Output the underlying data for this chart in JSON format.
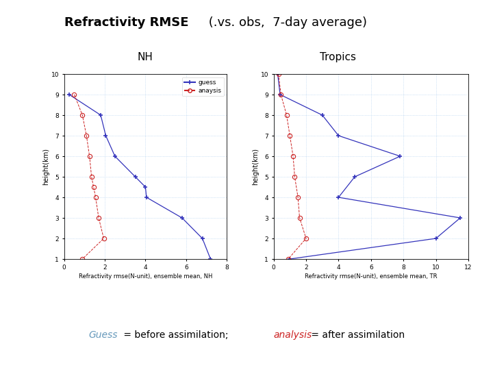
{
  "title_bold": "Refractivity RMSE",
  "title_normal": " (.vs. obs,  7-day average)",
  "subtitle_left": "NH",
  "subtitle_right": "Tropics",
  "nh_heights": [
    9.0,
    8.0,
    7.0,
    6.0,
    5.0,
    4.5,
    4.0,
    3.0,
    2.0,
    1.0
  ],
  "nh_guess": [
    0.25,
    1.8,
    2.05,
    2.5,
    3.5,
    4.0,
    4.05,
    5.8,
    6.8,
    7.2
  ],
  "nh_analysis": [
    0.5,
    0.9,
    1.1,
    1.25,
    1.35,
    1.45,
    1.55,
    1.7,
    1.95,
    0.9
  ],
  "tr_heights": [
    10.0,
    9.0,
    8.0,
    7.0,
    6.0,
    5.0,
    4.0,
    3.0,
    2.0,
    1.0
  ],
  "tr_guess": [
    0.25,
    0.4,
    3.0,
    4.0,
    7.8,
    5.0,
    4.0,
    11.5,
    10.0,
    1.0
  ],
  "tr_analysis": [
    0.3,
    0.45,
    0.8,
    1.0,
    1.2,
    1.3,
    1.5,
    1.6,
    2.0,
    0.9
  ],
  "guess_color": "#3333bb",
  "analysis_color": "#cc2222",
  "xlabel_nh": "Refractivity rmse(N-unit), ensemble mean, NH",
  "xlabel_tr": "Refractivity rmse(N-unit), ensemble mean, TR",
  "ylabel": "height(km)",
  "nh_xlim": [
    0,
    8
  ],
  "nh_xticks": [
    0,
    2,
    4,
    6,
    8
  ],
  "tr_xlim": [
    0,
    12
  ],
  "tr_xticks": [
    0,
    2,
    4,
    6,
    8,
    10,
    12
  ],
  "ylim": [
    1,
    10
  ],
  "yticks": [
    1,
    2,
    3,
    4,
    5,
    6,
    7,
    8,
    9,
    10
  ],
  "footer_guess_color": "#6699bb",
  "footer_analysis_color": "#cc2222",
  "footer_black": "#000000",
  "bg_color": "#ffffff"
}
